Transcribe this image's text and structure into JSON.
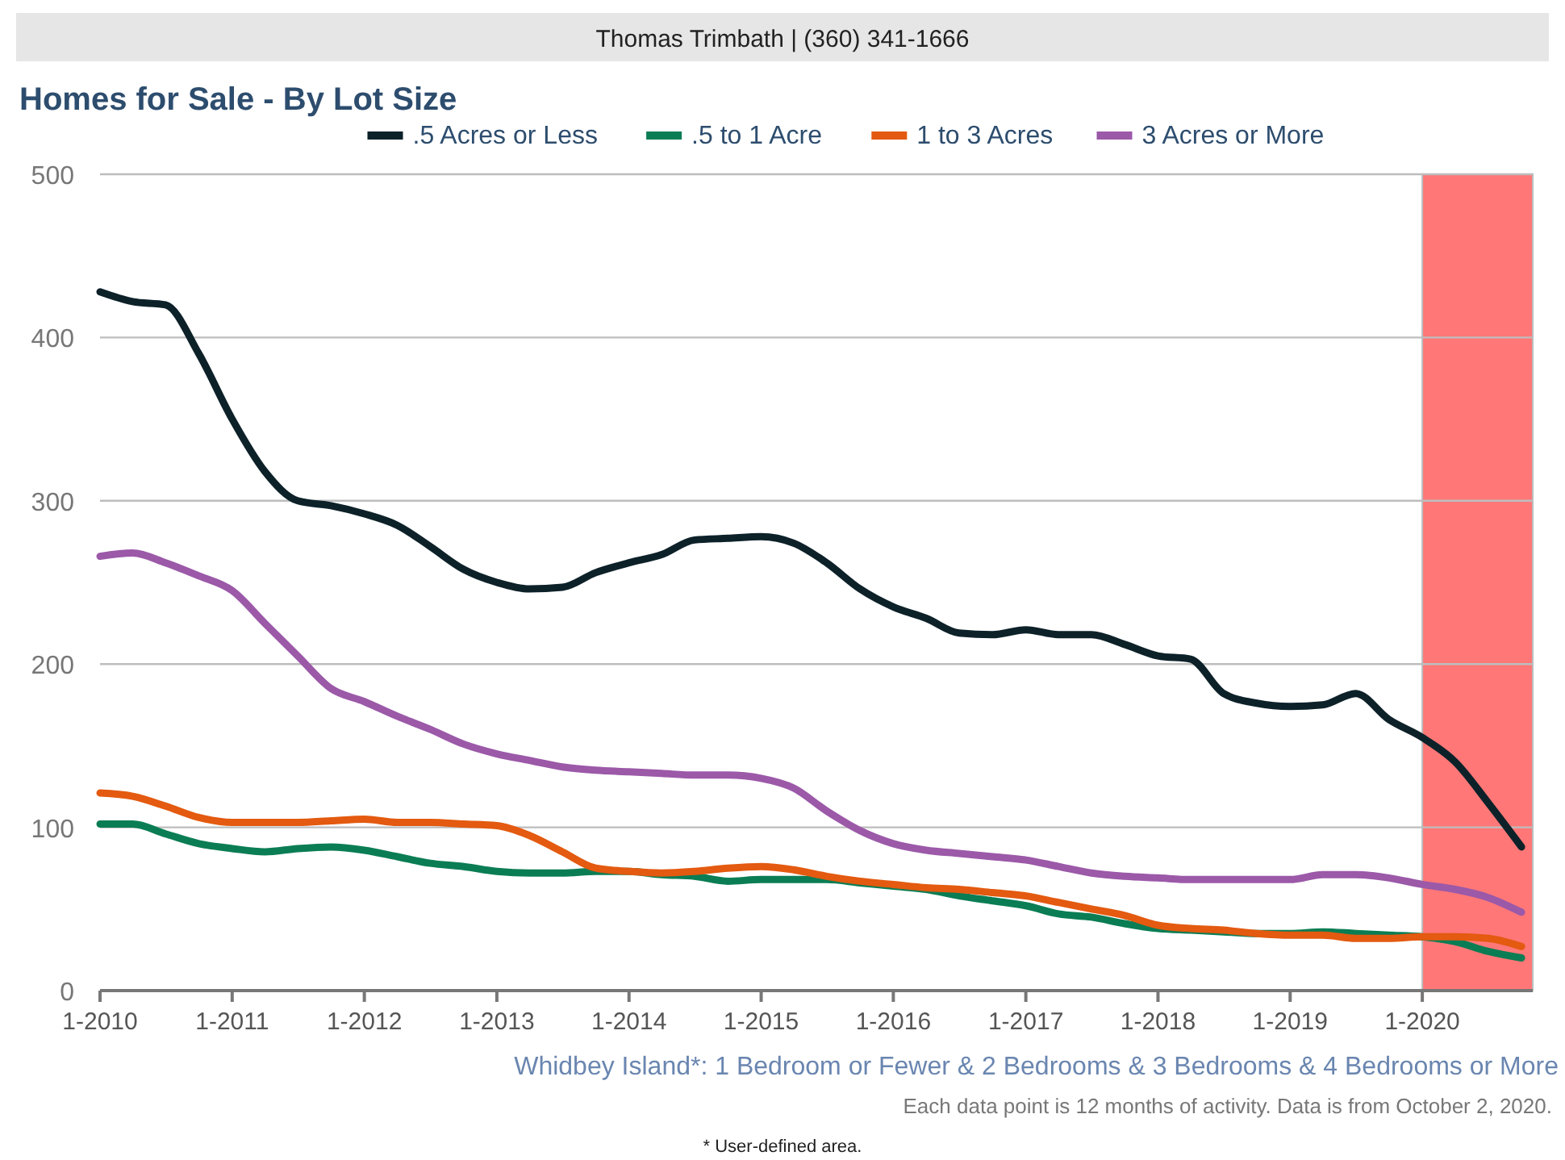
{
  "chart_data": {
    "type": "line",
    "title": "Homes for Sale - By Lot Size",
    "subtitle": "Whidbey Island*: 1 Bedroom or Fewer & 2 Bedrooms & 3 Bedrooms & 4 Bedrooms or More",
    "annotations": [
      "Thomas Trimbath | (360) 341-1666",
      "Each data point is 12 months of activity. Data is from October 2, 2020.",
      "* User-defined area."
    ],
    "x": [
      "2010-01",
      "2010-04",
      "2010-07",
      "2010-10",
      "2011-01",
      "2011-04",
      "2011-07",
      "2011-10",
      "2012-01",
      "2012-04",
      "2012-07",
      "2012-10",
      "2013-01",
      "2013-04",
      "2013-07",
      "2013-10",
      "2014-01",
      "2014-04",
      "2014-07",
      "2014-10",
      "2015-01",
      "2015-04",
      "2015-07",
      "2015-10",
      "2016-01",
      "2016-04",
      "2016-07",
      "2016-10",
      "2017-01",
      "2017-04",
      "2017-07",
      "2017-10",
      "2018-01",
      "2018-04",
      "2018-07",
      "2018-10",
      "2019-01",
      "2019-04",
      "2019-07",
      "2019-10",
      "2020-01",
      "2020-04",
      "2020-07",
      "2020-10"
    ],
    "series": [
      {
        "name": ".5 Acres or Less",
        "color": "#0d2129",
        "values": [
          428,
          422,
          420,
          390,
          350,
          318,
          300,
          297,
          292,
          285,
          272,
          258,
          250,
          246,
          247,
          256,
          262,
          267,
          276,
          277,
          278,
          274,
          262,
          246,
          235,
          228,
          219,
          218,
          221,
          218,
          218,
          212,
          205,
          203,
          182,
          176,
          174,
          175,
          182,
          166,
          155,
          140,
          115,
          88
        ]
      },
      {
        "name": ".5 to 1 Acre",
        "color": "#0b7d54",
        "values": [
          102,
          102,
          96,
          90,
          87,
          85,
          87,
          88,
          86,
          82,
          78,
          76,
          73,
          72,
          72,
          73,
          73,
          71,
          70,
          67,
          68,
          68,
          68,
          66,
          64,
          62,
          58,
          55,
          52,
          47,
          45,
          41,
          38,
          37,
          36,
          35,
          35,
          36,
          35,
          34,
          33,
          30,
          24,
          20
        ]
      },
      {
        "name": "1 to 3 Acres",
        "color": "#e35a10",
        "values": [
          121,
          119,
          113,
          106,
          103,
          103,
          103,
          104,
          105,
          103,
          103,
          102,
          101,
          95,
          85,
          75,
          73,
          72,
          73,
          75,
          76,
          74,
          70,
          67,
          65,
          63,
          62,
          60,
          58,
          54,
          50,
          46,
          40,
          38,
          37,
          35,
          34,
          34,
          32,
          32,
          33,
          33,
          32,
          27
        ]
      },
      {
        "name": "3 Acres or More",
        "color": "#9b59a8",
        "values": [
          266,
          268,
          262,
          254,
          245,
          225,
          205,
          185,
          177,
          168,
          160,
          151,
          145,
          141,
          137,
          135,
          134,
          133,
          132,
          132,
          130,
          124,
          110,
          98,
          90,
          86,
          84,
          82,
          80,
          76,
          72,
          70,
          69,
          68,
          68,
          68,
          68,
          71,
          71,
          69,
          65,
          62,
          57,
          48
        ]
      }
    ],
    "xlim": [
      "2010-01",
      "2020-11"
    ],
    "xticks": [
      {
        "value": "2010-01",
        "label": "1-2010"
      },
      {
        "value": "2011-01",
        "label": "1-2011"
      },
      {
        "value": "2012-01",
        "label": "1-2012"
      },
      {
        "value": "2013-01",
        "label": "1-2013"
      },
      {
        "value": "2014-01",
        "label": "1-2014"
      },
      {
        "value": "2015-01",
        "label": "1-2015"
      },
      {
        "value": "2016-01",
        "label": "1-2016"
      },
      {
        "value": "2017-01",
        "label": "1-2017"
      },
      {
        "value": "2018-01",
        "label": "1-2018"
      },
      {
        "value": "2019-01",
        "label": "1-2019"
      },
      {
        "value": "2020-01",
        "label": "1-2020"
      }
    ],
    "ylim": [
      0,
      500
    ],
    "yticks": [
      0,
      100,
      200,
      300,
      400,
      500
    ],
    "bands": [
      {
        "axis": "x",
        "from": "2020-01",
        "to": "2020-11",
        "color": "#ff7777"
      }
    ],
    "grid": "y",
    "legend": "top",
    "marker": "none",
    "line_style": "solid"
  }
}
